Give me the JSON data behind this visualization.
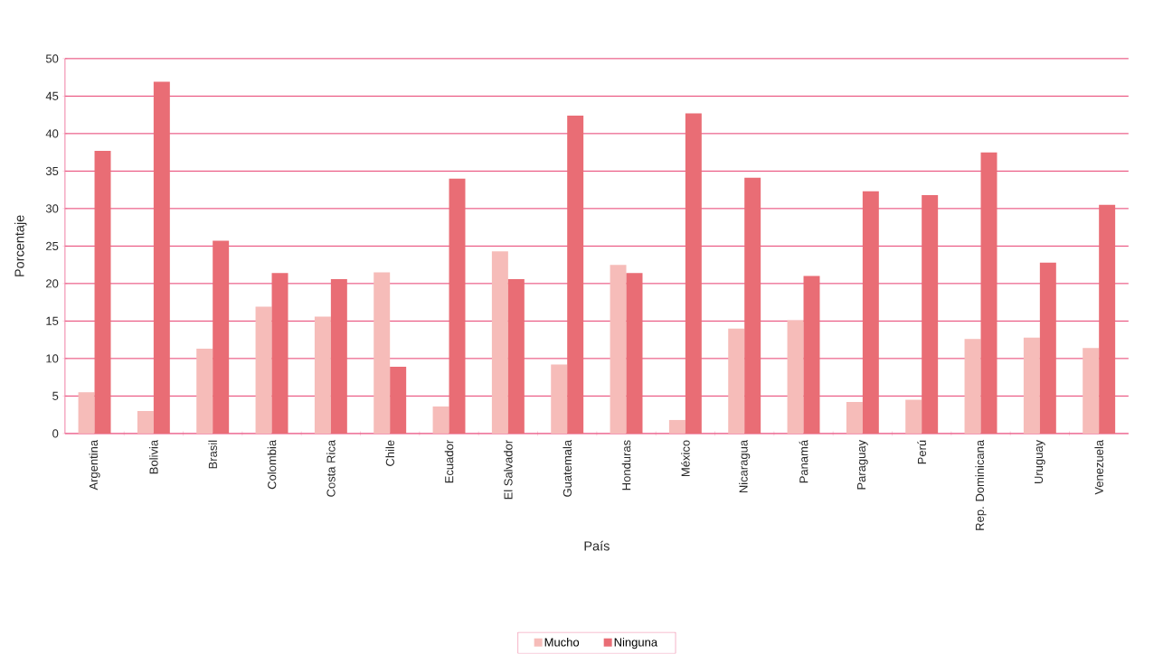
{
  "chart_data": {
    "type": "bar",
    "xlabel": "País",
    "ylabel": "Porcentaje",
    "categories": [
      "Argentina",
      "Bolivia",
      "Brasil",
      "Colombia",
      "Costa Rica",
      "Chile",
      "Ecuador",
      "El Salvador",
      "Guatemala",
      "Honduras",
      "México",
      "Nicaragua",
      "Panamá",
      "Paraguay",
      "Perú",
      "Rep. Dominicana",
      "Uruguay",
      "Venezuela"
    ],
    "series": [
      {
        "name": "Mucho",
        "color": "#f6bcb9",
        "values": [
          5.5,
          3.0,
          11.3,
          16.9,
          15.6,
          21.5,
          3.6,
          24.3,
          9.2,
          22.5,
          1.8,
          14.0,
          15.1,
          4.2,
          4.5,
          12.6,
          12.8,
          11.4
        ]
      },
      {
        "name": "Ninguna",
        "color": "#e96d75",
        "values": [
          37.7,
          46.9,
          25.7,
          21.4,
          20.6,
          8.9,
          34.0,
          20.6,
          42.4,
          21.4,
          42.7,
          34.1,
          21.0,
          32.3,
          31.8,
          37.5,
          22.8,
          30.5
        ]
      }
    ],
    "ylim": [
      0,
      50
    ],
    "yticks": [
      0,
      5,
      10,
      15,
      20,
      25,
      30,
      35,
      40,
      45,
      50
    ],
    "grid": "y",
    "legend": "bottom"
  }
}
